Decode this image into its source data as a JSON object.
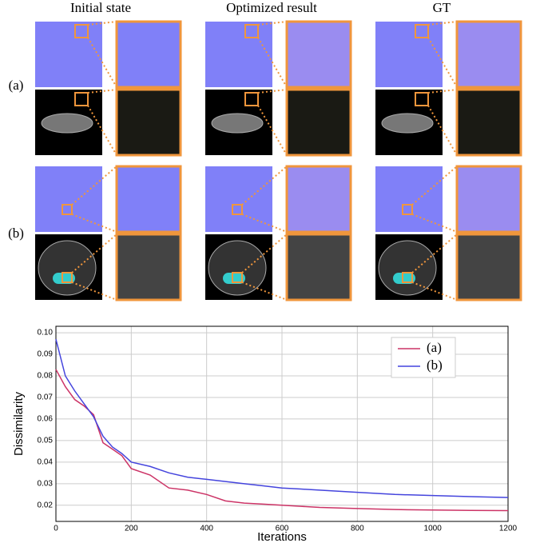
{
  "figure": {
    "columns": [
      "Initial state",
      "Optimized result",
      "GT"
    ],
    "rows": [
      "(a)",
      "(b)"
    ]
  },
  "chart_data": {
    "type": "line",
    "xlabel": "Iterations",
    "ylabel": "Dissimilarity",
    "x": [
      0,
      25,
      50,
      75,
      100,
      125,
      150,
      175,
      200,
      250,
      300,
      350,
      400,
      450,
      500,
      550,
      600,
      650,
      700,
      800,
      900,
      1000,
      1100,
      1200
    ],
    "series": [
      {
        "name": "(a)",
        "color": "#cc3366",
        "values": [
          0.083,
          0.075,
          0.069,
          0.066,
          0.062,
          0.049,
          0.046,
          0.043,
          0.037,
          0.034,
          0.028,
          0.027,
          0.025,
          0.022,
          0.021,
          0.0205,
          0.02,
          0.0195,
          0.019,
          0.0185,
          0.018,
          0.0178,
          0.0176,
          0.0175
        ]
      },
      {
        "name": "(b)",
        "color": "#4444dd",
        "values": [
          0.097,
          0.08,
          0.073,
          0.067,
          0.061,
          0.052,
          0.047,
          0.044,
          0.04,
          0.038,
          0.035,
          0.033,
          0.032,
          0.031,
          0.03,
          0.029,
          0.028,
          0.0275,
          0.027,
          0.026,
          0.025,
          0.0245,
          0.024,
          0.0236
        ]
      }
    ],
    "xlim": [
      0,
      1200
    ],
    "xticks": [
      0,
      200,
      400,
      600,
      800,
      1000,
      1200
    ],
    "ylim": [
      0.0125,
      0.103
    ],
    "yticks": [
      0.02,
      0.03,
      0.04,
      0.05,
      0.06,
      0.07,
      0.08,
      0.09,
      {
        "value": 0.1,
        "label": "0.10"
      }
    ],
    "grid": true,
    "legend": "upper right"
  }
}
